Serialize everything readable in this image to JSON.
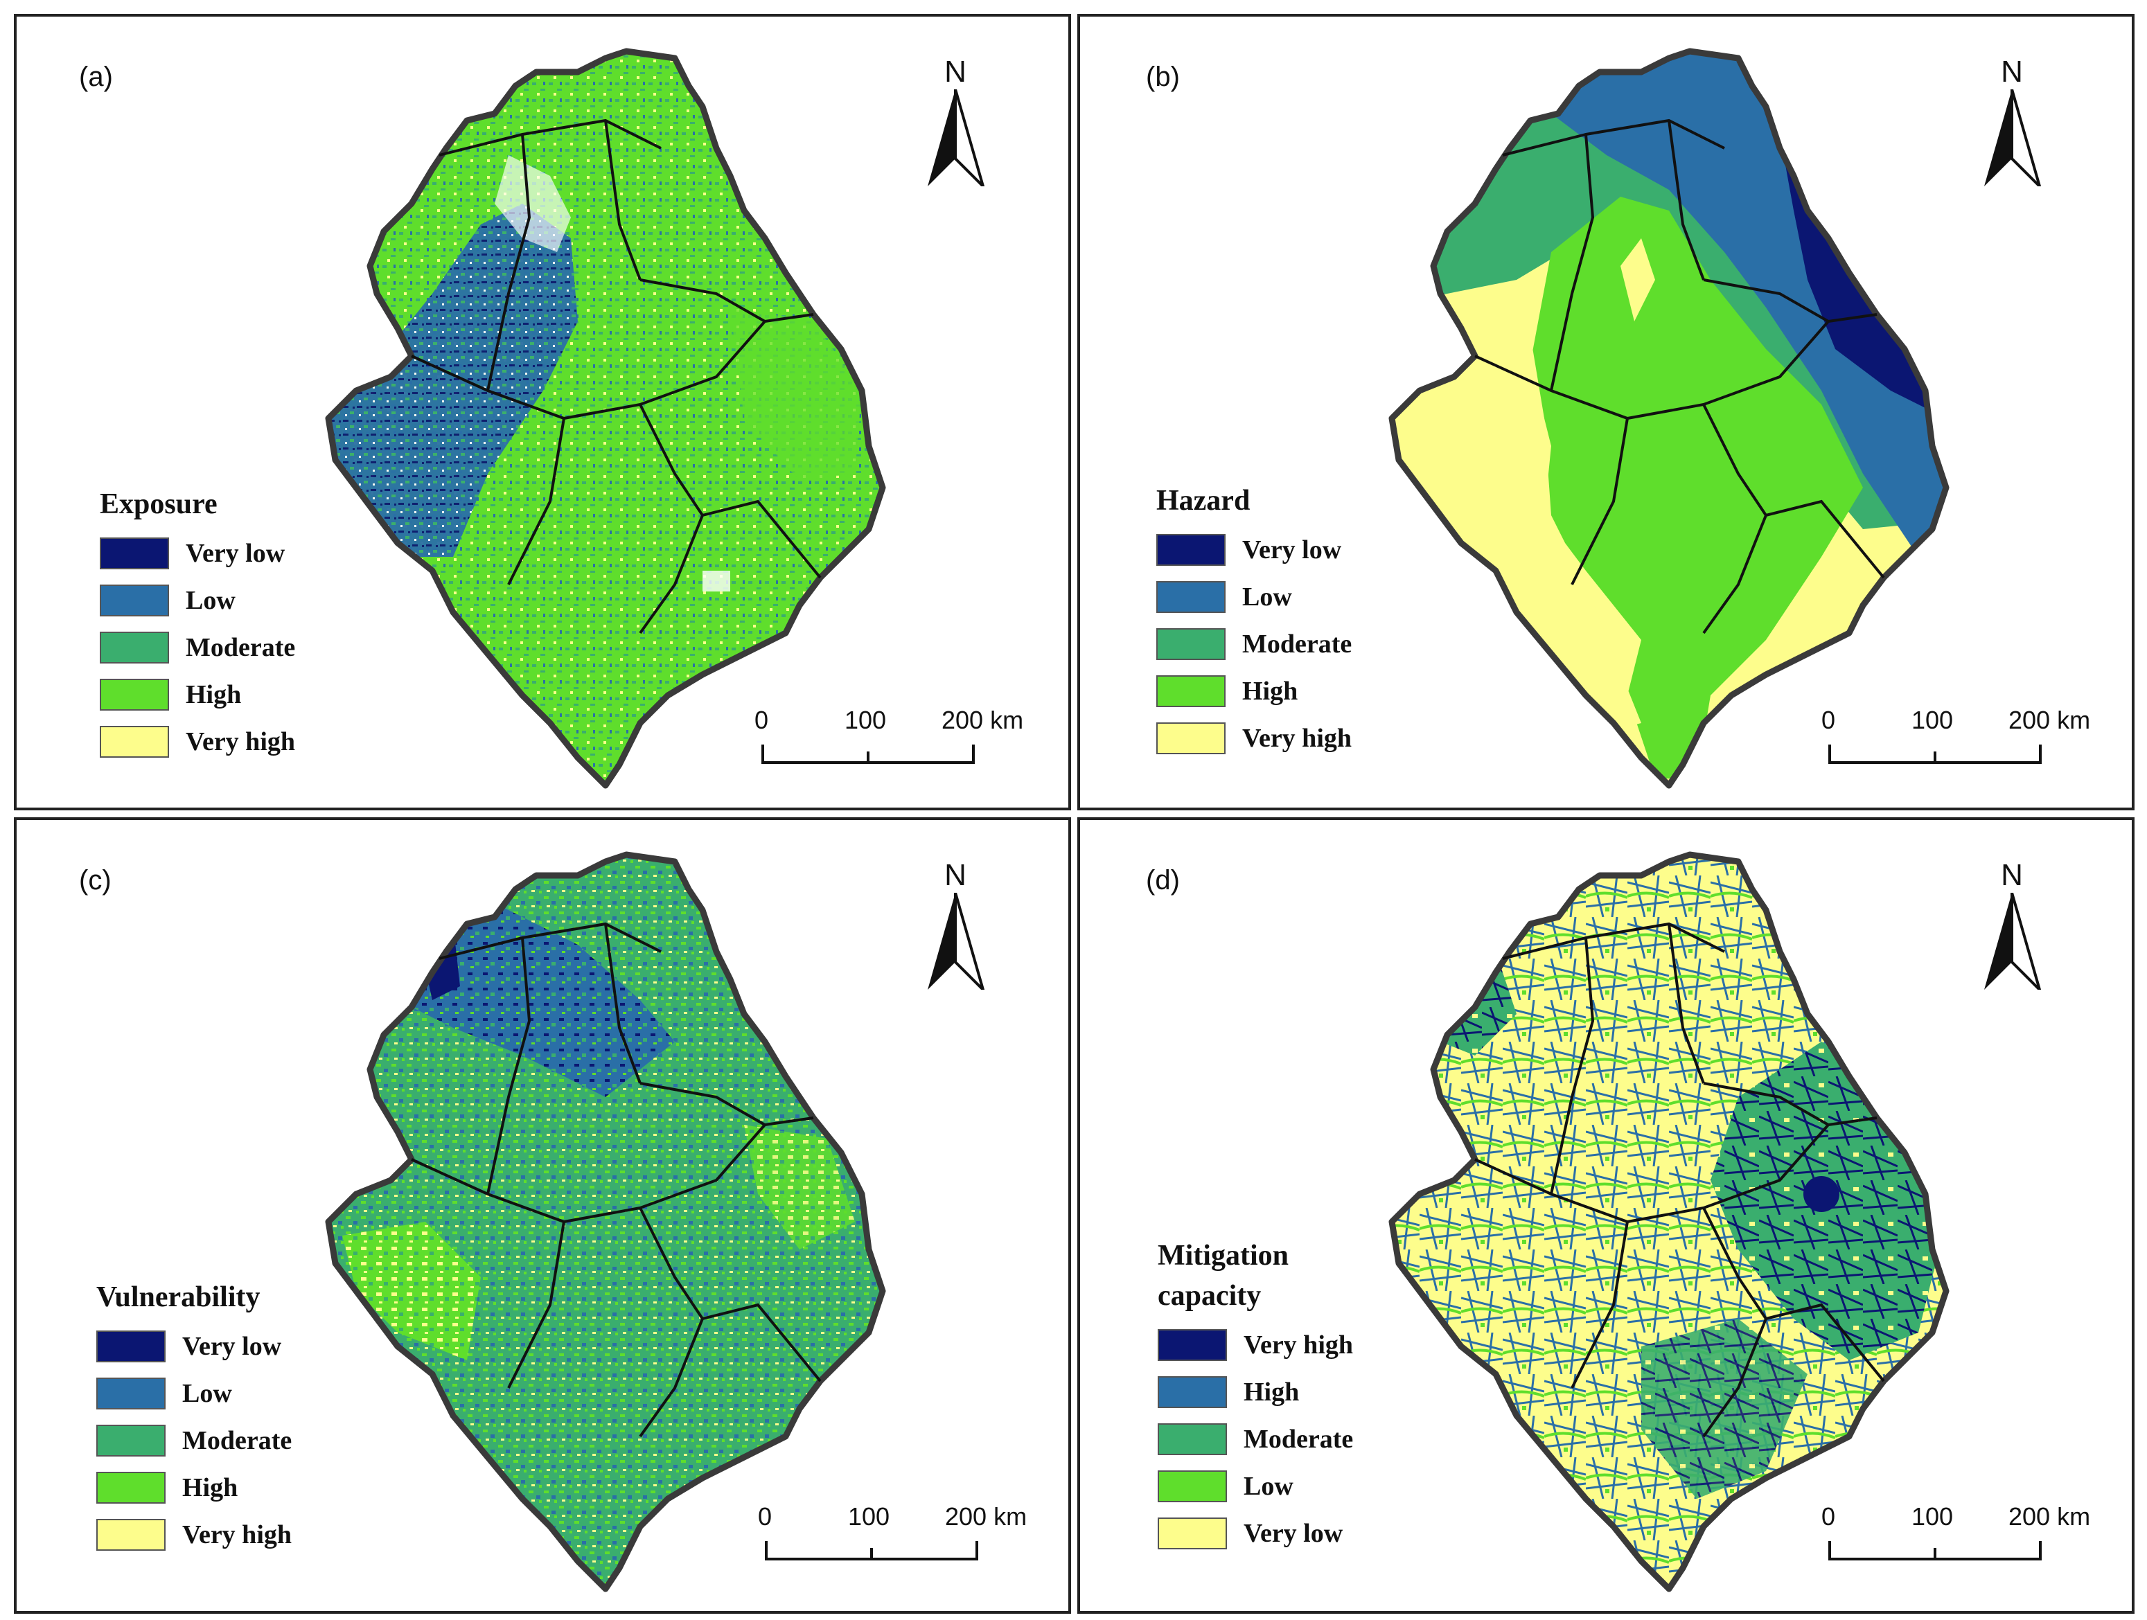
{
  "colors": {
    "very_dark_blue": "#0b1672",
    "blue": "#2a6fa7",
    "teal_green": "#3aae6e",
    "bright_green": "#5fde2c",
    "pale_yellow": "#fdfd8c",
    "boundary": "#111111",
    "outline": "#3a3a3a"
  },
  "panels": [
    {
      "label": "(a)",
      "north": "N",
      "legend_title": "Exposure",
      "legend": [
        {
          "label": "Very low",
          "color": "#0b1672"
        },
        {
          "label": "Low",
          "color": "#2a6fa7"
        },
        {
          "label": "Moderate",
          "color": "#3aae6e"
        },
        {
          "label": "High",
          "color": "#5fde2c"
        },
        {
          "label": "Very high",
          "color": "#fdfd8c"
        }
      ],
      "scale": {
        "ticks": [
          "0",
          "100",
          "200 km"
        ]
      }
    },
    {
      "label": "(b)",
      "north": "N",
      "legend_title": "Hazard",
      "legend": [
        {
          "label": "Very low",
          "color": "#0b1672"
        },
        {
          "label": "Low",
          "color": "#2a6fa7"
        },
        {
          "label": "Moderate",
          "color": "#3aae6e"
        },
        {
          "label": "High",
          "color": "#5fde2c"
        },
        {
          "label": "Very high",
          "color": "#fdfd8c"
        }
      ],
      "scale": {
        "ticks": [
          "0",
          "100",
          "200 km"
        ]
      }
    },
    {
      "label": "(c)",
      "north": "N",
      "legend_title": "Vulnerability",
      "legend": [
        {
          "label": "Very low",
          "color": "#0b1672"
        },
        {
          "label": "Low",
          "color": "#2a6fa7"
        },
        {
          "label": "Moderate",
          "color": "#3aae6e"
        },
        {
          "label": "High",
          "color": "#5fde2c"
        },
        {
          "label": "Very high",
          "color": "#fdfd8c"
        }
      ],
      "scale": {
        "ticks": [
          "0",
          "100",
          "200 km"
        ]
      }
    },
    {
      "label": "(d)",
      "north": "N",
      "legend_title_line1": "Mitigation",
      "legend_title_line2": "capacity",
      "legend": [
        {
          "label": "Very high",
          "color": "#0b1672"
        },
        {
          "label": "High",
          "color": "#2a6fa7"
        },
        {
          "label": "Moderate",
          "color": "#3aae6e"
        },
        {
          "label": "Low",
          "color": "#5fde2c"
        },
        {
          "label": "Very low",
          "color": "#fdfd8c"
        }
      ],
      "scale": {
        "ticks": [
          "0",
          "100",
          "200 km"
        ]
      }
    }
  ]
}
